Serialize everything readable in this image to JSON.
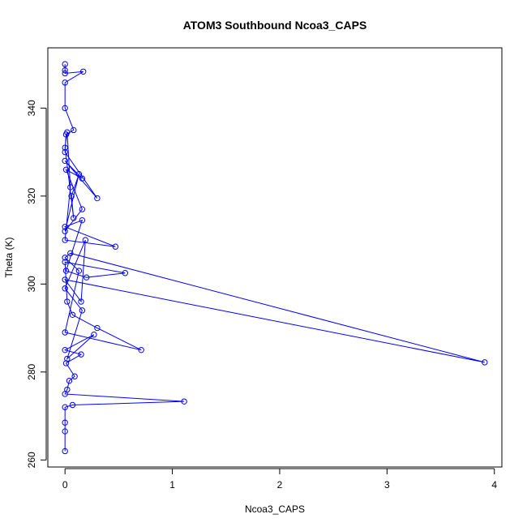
{
  "chart_data": {
    "type": "line",
    "title": "ATOM3 Southbound Ncoa3_CAPS",
    "xlabel": "Ncoa3_CAPS",
    "ylabel": "Theta (K)",
    "xlim": [
      -0.16,
      4.07
    ],
    "ylim": [
      258.4,
      353.7
    ],
    "x_ticks": [
      0,
      1,
      2,
      3,
      4
    ],
    "y_ticks": [
      260,
      280,
      300,
      320,
      340
    ],
    "grid": false,
    "line_color": "#0000ff",
    "marker": "open-circle",
    "series": [
      {
        "x": [
          0,
          0,
          0,
          0.17,
          0,
          0,
          0.08,
          0.01,
          0,
          0.3,
          0,
          0.16,
          0.01,
          0.16,
          0,
          0.13,
          0.06,
          0.08,
          0,
          0.02,
          0.05,
          0,
          0.47,
          0,
          0.16,
          0.01,
          0.2,
          0.56,
          0,
          0.02,
          0.07,
          0.3,
          0.71,
          0,
          0.13,
          0,
          0.05,
          3.91,
          0,
          0.15,
          0.19,
          0,
          0.16,
          0.02,
          0.27,
          0,
          0.15,
          0.01,
          0.09,
          0.04,
          0.02,
          0,
          1.11,
          0.07,
          0,
          0,
          0,
          0
        ],
        "y": [
          350.0,
          348.6,
          347.9,
          348.3,
          345.8,
          340.0,
          335.0,
          334.0,
          330.0,
          319.5,
          328.0,
          324.0,
          326.0,
          317.0,
          312.0,
          325.0,
          320.0,
          315.0,
          331.0,
          334.5,
          322.0,
          310.0,
          308.5,
          313.0,
          314.5,
          303.0,
          301.5,
          302.5,
          305.0,
          296.0,
          293.0,
          290.0,
          285.0,
          289.0,
          303.0,
          306.0,
          307.0,
          282.2,
          301.0,
          296.0,
          310.0,
          299.0,
          294.0,
          283.0,
          288.5,
          285.0,
          284.0,
          282.0,
          279.0,
          278.0,
          276.0,
          275.0,
          273.3,
          272.5,
          272.0,
          268.5,
          266.5,
          262.0
        ]
      }
    ]
  }
}
